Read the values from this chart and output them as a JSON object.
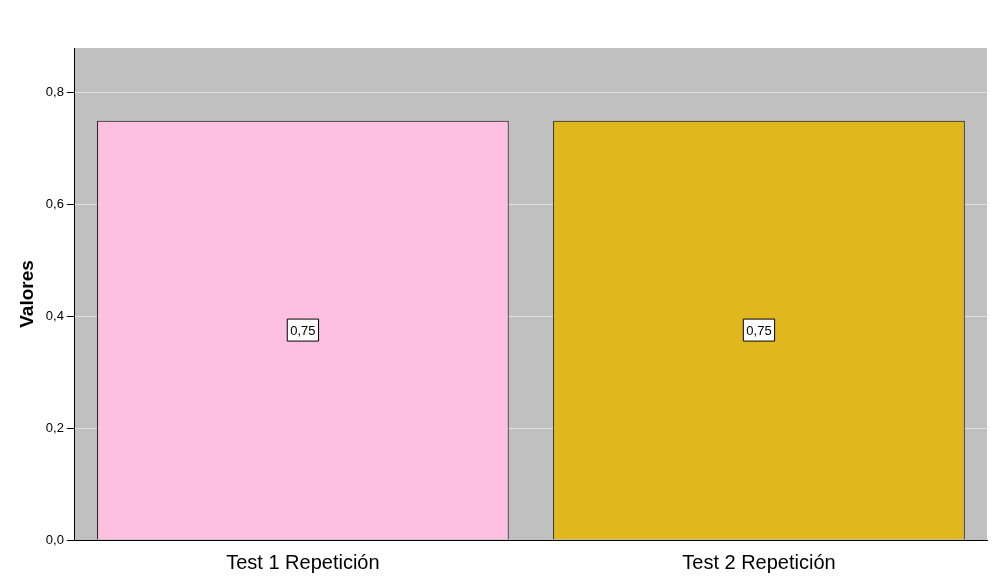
{
  "chart_data": {
    "type": "bar",
    "ylabel": "Valores",
    "categories": [
      "Test 1 Repetición",
      "Test 2 Repetición"
    ],
    "values": [
      0.75,
      0.75
    ],
    "colors": [
      "#fdc0e0",
      "#e0b81e"
    ],
    "value_labels": [
      "0,75",
      "0,75"
    ],
    "ylim": [
      0,
      0.88
    ],
    "yticks": [
      {
        "value": 0,
        "label": "0,0"
      },
      {
        "value": 0.2,
        "label": "0,2"
      },
      {
        "value": 0.4,
        "label": "0,4"
      },
      {
        "value": 0.6,
        "label": "0,6"
      },
      {
        "value": 0.8,
        "label": "0,8"
      }
    ],
    "grid": "y",
    "legend": false
  }
}
